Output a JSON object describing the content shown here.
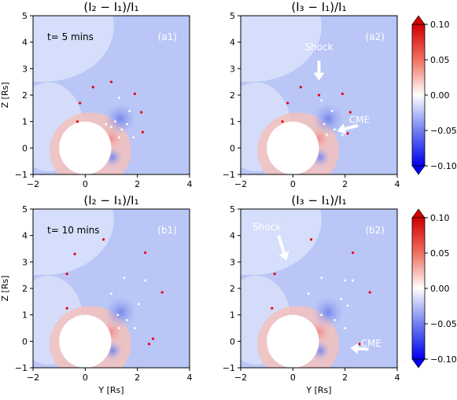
{
  "chart_data": [
    {
      "type": "heatmap",
      "panel_id": "a1",
      "title": "(I₂ − I₁)/I₁",
      "panel_label": "(a1)",
      "time_label": "t= 5 mins",
      "xlabel": "",
      "ylabel": "Z [Rs]",
      "xlim": [
        -2,
        4
      ],
      "ylim": [
        -1,
        5
      ],
      "xticks": [
        -2,
        0,
        2,
        4
      ],
      "yticks": [
        -1,
        0,
        1,
        2,
        3,
        4,
        5
      ],
      "sun_radius": 1,
      "red_points": [
        [
          -0.3,
          1.0
        ],
        [
          -0.2,
          1.7
        ],
        [
          0.3,
          2.3
        ],
        [
          1.0,
          2.5
        ],
        [
          1.9,
          2.05
        ],
        [
          2.15,
          1.35
        ],
        [
          2.2,
          0.6
        ]
      ],
      "white_points": [
        [
          1.3,
          1.9
        ],
        [
          1.7,
          1.4
        ],
        [
          1.15,
          1.0
        ],
        [
          1.4,
          0.7
        ],
        [
          1.0,
          0.8
        ],
        [
          0.8,
          0.9
        ],
        [
          1.85,
          0.4
        ],
        [
          1.6,
          0.9
        ],
        [
          1.3,
          0.4
        ]
      ],
      "annotations": []
    },
    {
      "type": "heatmap",
      "panel_id": "a2",
      "title": "(I₃ − I₁)/I₁",
      "panel_label": "(a2)",
      "time_label": "",
      "xlabel": "",
      "ylabel": "",
      "xlim": [
        -2,
        4
      ],
      "ylim": [
        -1,
        5
      ],
      "xticks": [
        -2,
        0,
        2,
        4
      ],
      "yticks": [
        -1,
        0,
        1,
        2,
        3,
        4,
        5
      ],
      "sun_radius": 1,
      "red_points": [
        [
          -0.4,
          1.0
        ],
        [
          -0.2,
          1.7
        ],
        [
          0.3,
          2.3
        ],
        [
          1.0,
          2.0
        ],
        [
          1.9,
          2.05
        ],
        [
          2.2,
          1.35
        ],
        [
          2.1,
          0.55
        ]
      ],
      "white_points": [
        [
          1.1,
          1.8
        ],
        [
          1.5,
          1.4
        ],
        [
          1.2,
          0.9
        ],
        [
          1.6,
          0.7
        ],
        [
          1.9,
          0.5
        ],
        [
          1.3,
          0.5
        ]
      ],
      "annotations": [
        {
          "text": "Shock",
          "text_at": [
            1.0,
            3.7
          ],
          "arrow_from": [
            1.0,
            3.3
          ],
          "arrow_to": [
            1.0,
            2.55
          ]
        },
        {
          "text": "CME",
          "text_at": [
            2.55,
            0.95
          ],
          "arrow_from": [
            2.5,
            0.85
          ],
          "arrow_to": [
            1.7,
            0.65
          ]
        }
      ]
    },
    {
      "type": "heatmap",
      "panel_id": "b1",
      "title": "(I₂ − I₁)/I₁",
      "panel_label": "(b1)",
      "time_label": "t= 10 mins",
      "xlabel": "Y [Rs]",
      "ylabel": "Z [Rs]",
      "xlim": [
        -2,
        4
      ],
      "ylim": [
        -1,
        5
      ],
      "xticks": [
        -2,
        0,
        2,
        4
      ],
      "yticks": [
        -1,
        0,
        1,
        2,
        3,
        4,
        5
      ],
      "sun_radius": 1,
      "red_points": [
        [
          -0.7,
          1.25
        ],
        [
          -0.7,
          2.55
        ],
        [
          -0.4,
          3.3
        ],
        [
          0.7,
          3.85
        ],
        [
          2.3,
          3.35
        ],
        [
          2.95,
          1.85
        ],
        [
          2.6,
          0.1
        ],
        [
          2.45,
          -0.1
        ]
      ],
      "white_points": [
        [
          1.5,
          2.4
        ],
        [
          2.3,
          2.3
        ],
        [
          1.0,
          1.8
        ],
        [
          2.05,
          1.4
        ],
        [
          1.25,
          1.0
        ],
        [
          1.6,
          0.8
        ],
        [
          1.9,
          0.5
        ],
        [
          1.3,
          0.5
        ]
      ],
      "annotations": []
    },
    {
      "type": "heatmap",
      "panel_id": "b2",
      "title": "(I₃ − I₁)/I₁",
      "panel_label": "(b2)",
      "time_label": "",
      "xlabel": "Y [Rs]",
      "ylabel": "",
      "xlim": [
        -2,
        4
      ],
      "ylim": [
        -1,
        5
      ],
      "xticks": [
        -2,
        0,
        2,
        4
      ],
      "yticks": [
        -1,
        0,
        1,
        2,
        3,
        4,
        5
      ],
      "sun_radius": 1,
      "red_points": [
        [
          -0.8,
          1.25
        ],
        [
          -0.7,
          2.55
        ],
        [
          0.7,
          3.85
        ],
        [
          2.3,
          3.35
        ],
        [
          2.95,
          1.85
        ],
        [
          2.55,
          -0.1
        ]
      ],
      "white_points": [
        [
          1.1,
          2.4
        ],
        [
          2.0,
          2.3
        ],
        [
          2.3,
          2.3
        ],
        [
          0.6,
          1.8
        ],
        [
          1.85,
          1.6
        ],
        [
          2.1,
          1.35
        ],
        [
          1.1,
          1.0
        ],
        [
          1.6,
          0.8
        ],
        [
          2.0,
          0.5
        ]
      ],
      "annotations": [
        {
          "text": "Shock",
          "text_at": [
            -1.0,
            4.2
          ],
          "arrow_from": [
            -0.55,
            4.0
          ],
          "arrow_to": [
            -0.25,
            3.05
          ]
        },
        {
          "text": "CME",
          "text_at": [
            3.0,
            -0.2
          ],
          "arrow_from": [
            2.9,
            -0.3
          ],
          "arrow_to": [
            2.2,
            -0.25
          ]
        }
      ]
    }
  ],
  "colorbar": {
    "label_a": "colorbar-a",
    "ticks": [
      "0.10",
      "0.05",
      "0.00",
      "−0.05",
      "−0.10"
    ],
    "tick_values": [
      0.1,
      0.05,
      0.0,
      -0.05,
      -0.1
    ],
    "range": [
      -0.1,
      0.1
    ],
    "color_high": "#d00000",
    "color_mid": "#ffffff",
    "color_low": "#0000ee"
  },
  "colors": {
    "field_blue": "#b9c6f6",
    "field_light": "#dfe6fb",
    "enhancement_red": "#f3c1bd",
    "red_marker": "#e8000b",
    "white_marker": "#ffffff",
    "annotation": "#ffffff"
  }
}
